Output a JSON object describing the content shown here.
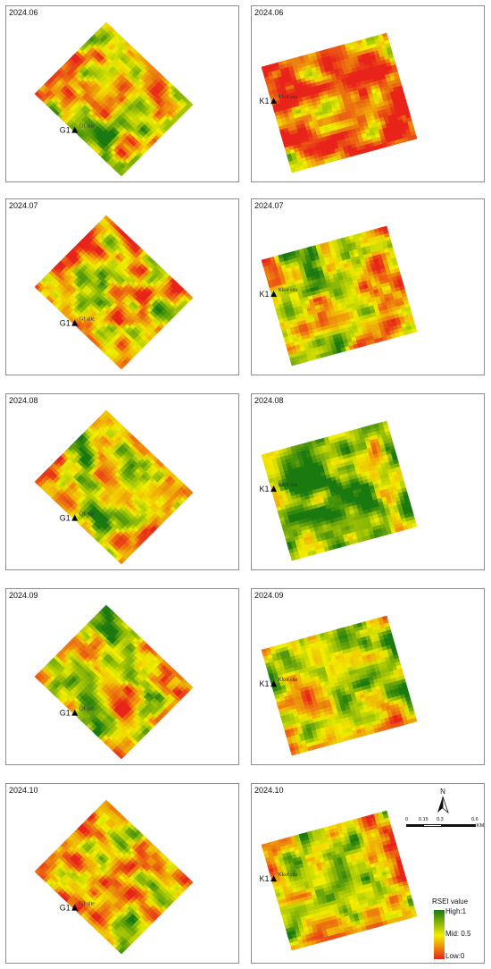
{
  "panels": [
    {
      "date": "2024.06",
      "marker": "G1",
      "site": "G1 site",
      "seed": 11,
      "palette": "g"
    },
    {
      "date": "2024.06",
      "marker": "K1",
      "site": "Kkot site",
      "seed": 23,
      "palette": "k_orange"
    },
    {
      "date": "2024.07",
      "marker": "G1",
      "site": "G1 site",
      "seed": 37,
      "palette": "g"
    },
    {
      "date": "2024.07",
      "marker": "K1",
      "site": "Kkot site",
      "seed": 41,
      "palette": "k_mixed"
    },
    {
      "date": "2024.08",
      "marker": "G1",
      "site": "G1 site",
      "seed": 53,
      "palette": "g"
    },
    {
      "date": "2024.08",
      "marker": "K1",
      "site": "Kkot site",
      "seed": 67,
      "palette": "k_green"
    },
    {
      "date": "2024.09",
      "marker": "G1",
      "site": "G1 site",
      "seed": 71,
      "palette": "g"
    },
    {
      "date": "2024.09",
      "marker": "K1",
      "site": "Kkot site",
      "seed": 83,
      "palette": "k_mixed2"
    },
    {
      "date": "2024.10",
      "marker": "G1",
      "site": "G1 site",
      "seed": 97,
      "palette": "g"
    },
    {
      "date": "2024.10",
      "marker": "K1",
      "site": "Kkot site",
      "seed": 101,
      "palette": "k_mixed2"
    }
  ],
  "north_arrow": "N",
  "scale_bar": {
    "ticks": [
      "0",
      "0.15",
      "0.3",
      "0.6"
    ],
    "unit": "KM"
  },
  "legend": {
    "title": "RSEI value",
    "high": "High:1",
    "mid": "Mid: 0.5",
    "low": "Low:0",
    "colors": [
      "#1a7a10",
      "#f2ee00",
      "#e8241a"
    ]
  }
}
